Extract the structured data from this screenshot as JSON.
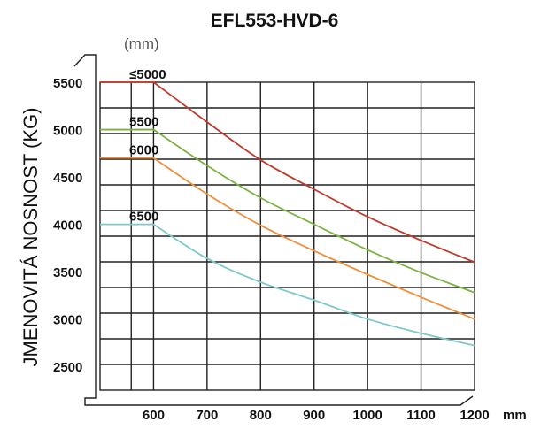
{
  "chart_data": {
    "type": "line",
    "title": "EFL553-HVD-6",
    "ylabel": "JMENOVITÁ NOSNOST (KG)",
    "xunit": "mm",
    "legend_unit": "(mm)",
    "x_ticks": [
      600,
      700,
      800,
      900,
      1000,
      1100,
      1200
    ],
    "y_ticks": [
      2500,
      3000,
      3500,
      4000,
      4500,
      5000,
      5500
    ],
    "xlim": [
      500,
      1200
    ],
    "ylim": [
      2250,
      5500
    ],
    "grid": true,
    "series": [
      {
        "name": "≤5000",
        "color": "#c0392b",
        "x": [
          500,
          600,
          700,
          800,
          900,
          1000,
          1100,
          1200
        ],
        "values": [
          5500,
          5500,
          5080,
          4680,
          4370,
          4080,
          3830,
          3600
        ]
      },
      {
        "name": "5500",
        "color": "#7cb342",
        "x": [
          500,
          600,
          700,
          800,
          900,
          1000,
          1100,
          1200
        ],
        "values": [
          5000,
          5000,
          4620,
          4280,
          4000,
          3730,
          3490,
          3280
        ]
      },
      {
        "name": "6000",
        "color": "#ef8f3a",
        "x": [
          500,
          600,
          700,
          800,
          900,
          1000,
          1100,
          1200
        ],
        "values": [
          4700,
          4700,
          4320,
          3990,
          3720,
          3470,
          3230,
          3000
        ]
      },
      {
        "name": "6500",
        "color": "#7ec8c8",
        "x": [
          500,
          600,
          700,
          800,
          900,
          1000,
          1100,
          1200
        ],
        "values": [
          4000,
          4000,
          3640,
          3390,
          3200,
          3000,
          2850,
          2720
        ]
      }
    ]
  }
}
